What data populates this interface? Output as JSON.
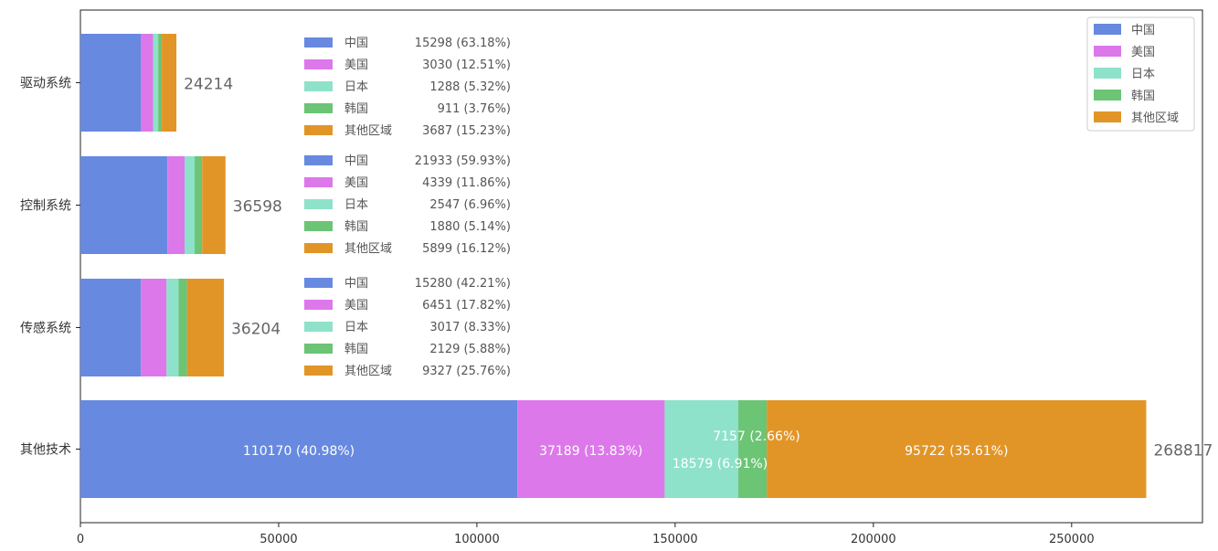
{
  "chart_data": {
    "type": "bar",
    "orientation": "horizontal",
    "stacked": true,
    "categories": [
      "驱动系统",
      "控制系统",
      "传感系统",
      "其他技术"
    ],
    "series": [
      {
        "name": "中国",
        "color": "#6789e0",
        "values": [
          15298,
          21933,
          15280,
          110170
        ]
      },
      {
        "name": "美国",
        "color": "#dd78ea",
        "values": [
          3030,
          4339,
          6451,
          37189
        ]
      },
      {
        "name": "日本",
        "color": "#8ee2c9",
        "values": [
          1288,
          2547,
          3017,
          18579
        ]
      },
      {
        "name": "韩国",
        "color": "#6cc475",
        "values": [
          911,
          1880,
          2129,
          7157
        ]
      },
      {
        "name": "其他区域",
        "color": "#e29527",
        "values": [
          3687,
          5899,
          9327,
          95722
        ]
      }
    ],
    "totals": [
      "24214",
      "36598",
      "36204",
      "268817"
    ],
    "xlim": [
      0,
      283000
    ],
    "xticks": [
      0,
      50000,
      100000,
      150000,
      200000,
      250000
    ],
    "xtick_labels": [
      "0",
      "50000",
      "100000",
      "150000",
      "200000",
      "250000"
    ],
    "inner_legends": [
      [
        {
          "name": "中国",
          "value": "15298",
          "pct": "(63.18%)"
        },
        {
          "name": "美国",
          "value": "3030",
          "pct": "(12.51%)"
        },
        {
          "name": "日本",
          "value": "1288",
          "pct": "(5.32%)"
        },
        {
          "name": "韩国",
          "value": "911",
          "pct": "(3.76%)"
        },
        {
          "name": "其他区域",
          "value": "3687",
          "pct": "(15.23%)"
        }
      ],
      [
        {
          "name": "中国",
          "value": "21933",
          "pct": "(59.93%)"
        },
        {
          "name": "美国",
          "value": "4339",
          "pct": "(11.86%)"
        },
        {
          "name": "日本",
          "value": "2547",
          "pct": "(6.96%)"
        },
        {
          "name": "韩国",
          "value": "1880",
          "pct": "(5.14%)"
        },
        {
          "name": "其他区域",
          "value": "5899",
          "pct": "(16.12%)"
        }
      ],
      [
        {
          "name": "中国",
          "value": "15280",
          "pct": "(42.21%)"
        },
        {
          "name": "美国",
          "value": "6451",
          "pct": "(17.82%)"
        },
        {
          "name": "日本",
          "value": "3017",
          "pct": "(8.33%)"
        },
        {
          "name": "韩国",
          "value": "2129",
          "pct": "(5.88%)"
        },
        {
          "name": "其他区域",
          "value": "9327",
          "pct": "(25.76%)"
        }
      ]
    ],
    "segment_labels_last_row": [
      "110170 (40.98%)",
      "37189 (13.83%)",
      "18579 (6.91%)",
      "7157 (2.66%)",
      "95722 (35.61%)"
    ],
    "legend": {
      "position": "top-right",
      "entries": [
        "中国",
        "美国",
        "日本",
        "韩国",
        "其他区域"
      ]
    },
    "grid": false
  }
}
